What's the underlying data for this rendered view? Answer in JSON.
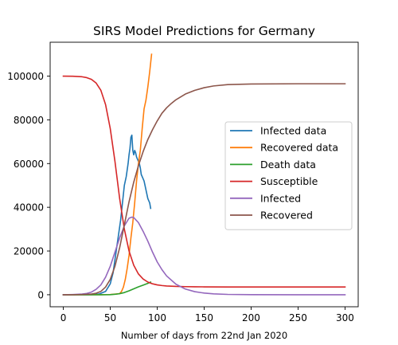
{
  "chart_data": {
    "type": "line",
    "title": "SIRS Model Predictions for Germany",
    "xlabel": "Number of days from 22nd Jan 2020",
    "ylabel": "",
    "xlim": [
      -14,
      314
    ],
    "ylim": [
      -5500,
      115500
    ],
    "xticks": [
      0,
      50,
      100,
      150,
      200,
      250,
      300
    ],
    "yticks": [
      0,
      20000,
      40000,
      60000,
      80000,
      100000
    ],
    "grid": false,
    "legend_position": "center-right",
    "series": [
      {
        "name": "Infected data",
        "color": "#1f77b4",
        "x": [
          0,
          30,
          38,
          45,
          50,
          53,
          55,
          57,
          59,
          61,
          63,
          65,
          67,
          69,
          70,
          71,
          72,
          73,
          74,
          75,
          76,
          77,
          78,
          79,
          80,
          81,
          82,
          83,
          84,
          85,
          86,
          87,
          88,
          89,
          90,
          91,
          92,
          93
        ],
        "y": [
          0,
          50,
          300,
          1500,
          5000,
          10000,
          16000,
          22000,
          28000,
          34000,
          42000,
          50000,
          54000,
          60000,
          64000,
          67000,
          72000,
          73000,
          66000,
          64000,
          66000,
          65000,
          63000,
          62000,
          61000,
          60000,
          58000,
          55000,
          54000,
          53000,
          52000,
          50000,
          48000,
          46000,
          44000,
          43000,
          42000,
          39500
        ]
      },
      {
        "name": "Recovered data",
        "color": "#ff7f0e",
        "x": [
          0,
          40,
          50,
          60,
          62,
          64,
          66,
          68,
          70,
          72,
          74,
          76,
          78,
          80,
          82,
          84,
          86,
          88,
          90,
          92,
          93,
          94
        ],
        "y": [
          0,
          20,
          100,
          500,
          1500,
          3500,
          7000,
          12000,
          18000,
          26000,
          33000,
          42000,
          52000,
          60000,
          66000,
          76000,
          85000,
          89000,
          95000,
          102000,
          106000,
          110000
        ]
      },
      {
        "name": "Death data",
        "color": "#2ca02c",
        "x": [
          0,
          40,
          50,
          55,
          60,
          65,
          70,
          75,
          80,
          85,
          90,
          93
        ],
        "y": [
          0,
          0,
          50,
          200,
          500,
          1000,
          1800,
          2700,
          3600,
          4400,
          5200,
          5800
        ]
      },
      {
        "name": "Susceptible",
        "color": "#d62728",
        "x": [
          0,
          10,
          20,
          25,
          30,
          35,
          40,
          45,
          50,
          55,
          60,
          65,
          70,
          75,
          80,
          85,
          90,
          95,
          100,
          105,
          110,
          120,
          130,
          140,
          150,
          175,
          200,
          250,
          300
        ],
        "y": [
          100000,
          99950,
          99700,
          99300,
          98500,
          96800,
          93500,
          87000,
          76000,
          61000,
          44000,
          30000,
          20000,
          13500,
          9500,
          7200,
          5800,
          5000,
          4500,
          4200,
          4000,
          3800,
          3700,
          3650,
          3600,
          3550,
          3550,
          3550,
          3550
        ]
      },
      {
        "name": "Infected",
        "color": "#9467bd",
        "x": [
          0,
          10,
          20,
          25,
          30,
          35,
          40,
          45,
          50,
          55,
          60,
          65,
          70,
          73,
          75,
          80,
          85,
          90,
          95,
          100,
          105,
          110,
          120,
          130,
          140,
          150,
          160,
          175,
          200,
          250,
          300
        ],
        "y": [
          0,
          100,
          300,
          600,
          1200,
          2500,
          4500,
          8000,
          13000,
          19500,
          26000,
          31500,
          35000,
          35500,
          35300,
          33000,
          29000,
          24500,
          19500,
          15000,
          11500,
          8600,
          4800,
          2600,
          1400,
          750,
          400,
          150,
          20,
          0,
          0
        ]
      },
      {
        "name": "Recovered",
        "color": "#8c564b",
        "x": [
          0,
          10,
          20,
          30,
          35,
          40,
          45,
          50,
          55,
          60,
          65,
          70,
          75,
          80,
          85,
          90,
          95,
          100,
          105,
          110,
          115,
          120,
          130,
          140,
          150,
          160,
          175,
          200,
          250,
          300
        ],
        "y": [
          0,
          0,
          100,
          300,
          700,
          1500,
          3500,
          7000,
          13000,
          21500,
          32000,
          42500,
          51500,
          59000,
          65500,
          71000,
          75500,
          79500,
          83000,
          85500,
          87500,
          89200,
          91800,
          93500,
          94700,
          95500,
          96100,
          96400,
          96500,
          96500
        ]
      }
    ]
  }
}
